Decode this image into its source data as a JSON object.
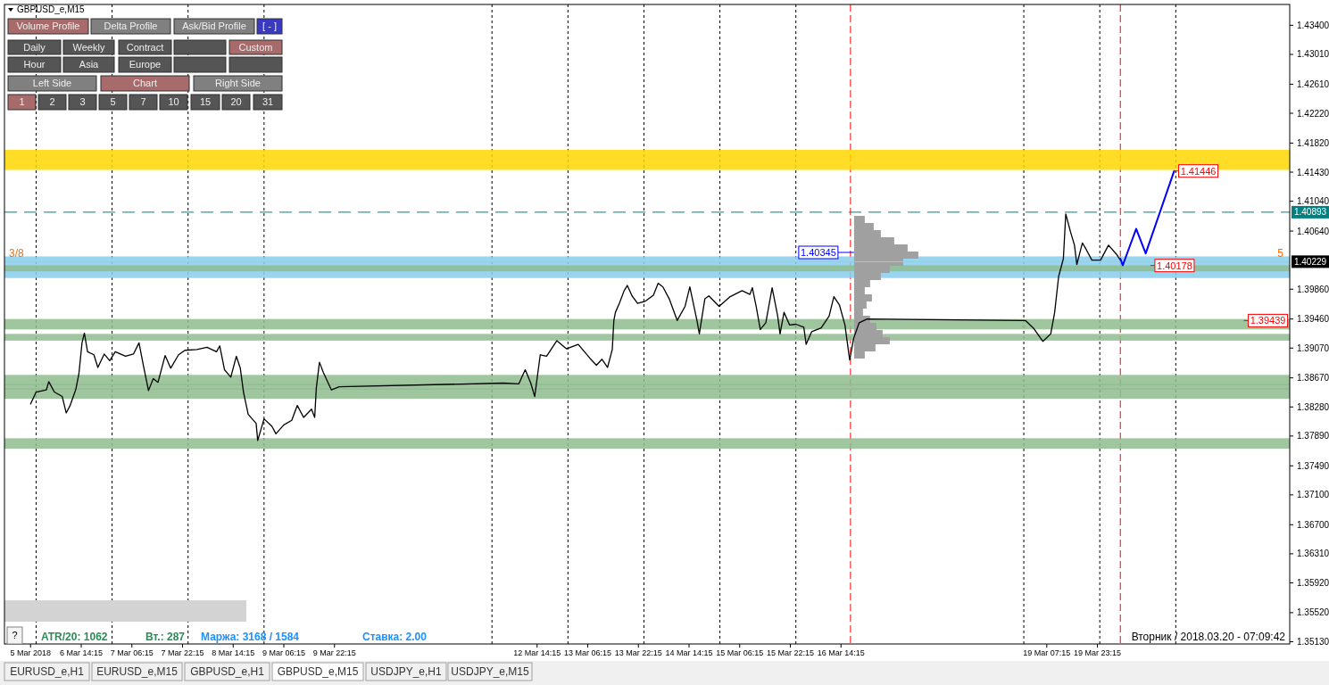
{
  "chart_data": {
    "type": "line",
    "title": "GBPUSD_e,M15",
    "xlim": [
      "2018-03-05T14:00",
      "2018-03-22T12:00"
    ],
    "ylim": [
      1.351,
      1.4368
    ],
    "xticks": [
      {
        "value": "2018-03-05T22:15",
        "label": "5 Mar 2018"
      },
      {
        "value": "2018-03-06T14:15",
        "label": "6 Mar 14:15"
      },
      {
        "value": "2018-03-07T06:15",
        "label": "7 Mar 06:15"
      },
      {
        "value": "2018-03-07T22:15",
        "label": "7 Mar 22:15"
      },
      {
        "value": "2018-03-08T14:15",
        "label": "8 Mar 14:15"
      },
      {
        "value": "2018-03-09T06:15",
        "label": "9 Mar 06:15"
      },
      {
        "value": "2018-03-09T22:15",
        "label": "9 Mar 22:15"
      },
      {
        "value": "2018-03-12T14:15",
        "label": "12 Mar 14:15"
      },
      {
        "value": "2018-03-13T06:15",
        "label": "13 Mar 06:15"
      },
      {
        "value": "2018-03-13T22:15",
        "label": "13 Mar 22:15"
      },
      {
        "value": "2018-03-14T14:15",
        "label": "14 Mar 14:15"
      },
      {
        "value": "2018-03-15T06:15",
        "label": "15 Mar 06:15"
      },
      {
        "value": "2018-03-15T22:15",
        "label": "15 Mar 22:15"
      },
      {
        "value": "2018-03-16T14:15",
        "label": "16 Mar 14:15"
      },
      {
        "value": "2018-03-19T07:15",
        "label": "19 Mar 07:15"
      },
      {
        "value": "2018-03-19T23:15",
        "label": "19 Mar 23:15"
      }
    ],
    "yticks": [
      {
        "value": 1.434,
        "label": "1.43400"
      },
      {
        "value": 1.4301,
        "label": "1.43010"
      },
      {
        "value": 1.4261,
        "label": "1.42610"
      },
      {
        "value": 1.4222,
        "label": "1.42220"
      },
      {
        "value": 1.4182,
        "label": "1.41820"
      },
      {
        "value": 1.4143,
        "label": "1.41430"
      },
      {
        "value": 1.4104,
        "label": "1.41040"
      },
      {
        "value": 1.4064,
        "label": "1.40640"
      },
      {
        "value": 1.3986,
        "label": "1.39860"
      },
      {
        "value": 1.3946,
        "label": "1.39460"
      },
      {
        "value": 1.3907,
        "label": "1.39070"
      },
      {
        "value": 1.3867,
        "label": "1.38670"
      },
      {
        "value": 1.3828,
        "label": "1.38280"
      },
      {
        "value": 1.3789,
        "label": "1.37890"
      },
      {
        "value": 1.3749,
        "label": "1.37490"
      },
      {
        "value": 1.371,
        "label": "1.37100"
      },
      {
        "value": 1.367,
        "label": "1.36700"
      },
      {
        "value": 1.3631,
        "label": "1.36310"
      },
      {
        "value": 1.3592,
        "label": "1.35920"
      },
      {
        "value": 1.3552,
        "label": "1.35520"
      },
      {
        "value": 1.3513,
        "label": "1.35130"
      }
    ],
    "series": [
      {
        "color": "#000000",
        "x": [
          "2018-03-05T22:15",
          "2018-03-06T00:00",
          "2018-03-06T03:15",
          "2018-03-06T04:00",
          "2018-03-06T05:45",
          "2018-03-06T08:15",
          "2018-03-06T09:30",
          "2018-03-06T10:45",
          "2018-03-06T12:30",
          "2018-03-06T13:30",
          "2018-03-06T14:30",
          "2018-03-06T15:15",
          "2018-03-06T16:15",
          "2018-03-06T18:15",
          "2018-03-06T19:30",
          "2018-03-06T21:30",
          "2018-03-06T23:15",
          "2018-03-07T01:00",
          "2018-03-07T04:15",
          "2018-03-07T06:45",
          "2018-03-07T08:30",
          "2018-03-07T10:00",
          "2018-03-07T11:30",
          "2018-03-07T13:00",
          "2018-03-07T14:30",
          "2018-03-07T16:45",
          "2018-03-07T18:30",
          "2018-03-07T21:00",
          "2018-03-07T23:00",
          "2018-03-08T02:45",
          "2018-03-08T06:00",
          "2018-03-08T09:00",
          "2018-03-08T10:00",
          "2018-03-08T11:30",
          "2018-03-08T13:30",
          "2018-03-08T15:15",
          "2018-03-08T16:30",
          "2018-03-08T17:30",
          "2018-03-08T19:00",
          "2018-03-08T21:30",
          "2018-03-08T22:00",
          "2018-03-09T00:00",
          "2018-03-09T02:30",
          "2018-03-09T03:45",
          "2018-03-09T06:15",
          "2018-03-09T08:45",
          "2018-03-09T10:30",
          "2018-03-09T12:30",
          "2018-03-09T15:00",
          "2018-03-09T16:00",
          "2018-03-09T16:30",
          "2018-03-09T17:30",
          "2018-03-09T18:45",
          "2018-03-09T21:15",
          "2018-03-09T23:45",
          "2018-03-12T03:30",
          "2018-03-12T08:30",
          "2018-03-12T10:30",
          "2018-03-12T12:15",
          "2018-03-12T13:30",
          "2018-03-12T15:15",
          "2018-03-12T17:15",
          "2018-03-12T20:30",
          "2018-03-12T23:30",
          "2018-03-13T03:15",
          "2018-03-13T07:00",
          "2018-03-13T09:00",
          "2018-03-13T10:45",
          "2018-03-13T12:30",
          "2018-03-13T14:00",
          "2018-03-13T14:30",
          "2018-03-13T15:00",
          "2018-03-13T16:15",
          "2018-03-13T17:45",
          "2018-03-13T18:45",
          "2018-03-13T20:15",
          "2018-03-13T22:00",
          "2018-03-14T00:30",
          "2018-03-14T03:00",
          "2018-03-14T04:30",
          "2018-03-14T06:00",
          "2018-03-14T08:00",
          "2018-03-14T10:30",
          "2018-03-14T13:00",
          "2018-03-14T14:30",
          "2018-03-14T16:45",
          "2018-03-14T17:30",
          "2018-03-14T19:15",
          "2018-03-14T20:30",
          "2018-03-14T23:45",
          "2018-03-15T03:15",
          "2018-03-15T07:00",
          "2018-03-15T09:30",
          "2018-03-15T10:15",
          "2018-03-15T11:30",
          "2018-03-15T12:45",
          "2018-03-15T14:30",
          "2018-03-15T16:30",
          "2018-03-15T18:15",
          "2018-03-15T19:00",
          "2018-03-15T20:15",
          "2018-03-15T22:00",
          "2018-03-16T00:00",
          "2018-03-16T02:30",
          "2018-03-16T03:15",
          "2018-03-16T05:00",
          "2018-03-16T08:00",
          "2018-03-16T10:30",
          "2018-03-16T12:00",
          "2018-03-16T13:45",
          "2018-03-16T15:30",
          "2018-03-16T17:00",
          "2018-03-16T18:15",
          "2018-03-16T20:00",
          "2018-03-16T22:30",
          "2018-03-19T00:30",
          "2018-03-19T03:00",
          "2018-03-19T06:00",
          "2018-03-19T08:30",
          "2018-03-19T09:45",
          "2018-03-19T11:00",
          "2018-03-19T11:45",
          "2018-03-19T12:30",
          "2018-03-19T13:15",
          "2018-03-19T14:45",
          "2018-03-19T16:00",
          "2018-03-19T16:45",
          "2018-03-19T18:30",
          "2018-03-19T19:45",
          "2018-03-19T21:30",
          "2018-03-20T00:15",
          "2018-03-20T02:45",
          "2018-03-20T05:15",
          "2018-03-20T06:30"
        ],
        "values": [
          1.3832,
          1.3848,
          1.3851,
          1.3862,
          1.3848,
          1.3842,
          1.382,
          1.383,
          1.3851,
          1.3872,
          1.3914,
          1.3927,
          1.3902,
          1.3898,
          1.3881,
          1.3899,
          1.389,
          1.3902,
          1.3896,
          1.3899,
          1.3914,
          1.3881,
          1.385,
          1.3866,
          1.3861,
          1.3897,
          1.388,
          1.3898,
          1.3904,
          1.3905,
          1.3908,
          1.3902,
          1.391,
          1.3878,
          1.3868,
          1.3896,
          1.388,
          1.3848,
          1.3818,
          1.3806,
          1.3783,
          1.3812,
          1.3802,
          1.3792,
          1.3804,
          1.381,
          1.383,
          1.3814,
          1.3825,
          1.3814,
          1.3853,
          1.3888,
          1.3874,
          1.3851,
          1.3855,
          1.386,
          1.3859,
          1.3878,
          1.386,
          1.3842,
          1.3898,
          1.3896,
          1.3917,
          1.3906,
          1.3912,
          1.3893,
          1.3884,
          1.3892,
          1.3881,
          1.3905,
          1.3944,
          1.3955,
          1.3967,
          1.3984,
          1.3991,
          1.3977,
          1.3967,
          1.397,
          1.3978,
          1.3994,
          1.3989,
          1.3973,
          1.3944,
          1.3963,
          1.3989,
          1.3944,
          1.3926,
          1.3973,
          1.3977,
          1.3963,
          1.3976,
          1.3984,
          1.3979,
          1.3988,
          1.3962,
          1.3932,
          1.3941,
          1.3988,
          1.395,
          1.3926,
          1.3955,
          1.3938,
          1.3939,
          1.3935,
          1.3912,
          1.3929,
          1.3934,
          1.395,
          1.3976,
          1.3965,
          1.3938,
          1.3891,
          1.392,
          1.3941,
          1.3946,
          1.3944,
          1.3934,
          1.3916,
          1.3926,
          1.3955,
          1.4003,
          1.4015,
          1.4027,
          1.4087,
          1.4063,
          1.4045,
          1.4019,
          1.4048,
          1.4039,
          1.4025,
          1.4025,
          1.4045,
          1.4033,
          1.4025
        ]
      },
      {
        "color": "#0000ff",
        "x": [
          "2018-03-20T06:30",
          "2018-03-20T07:15",
          "2018-03-20T11:30",
          "2018-03-20T14:30",
          "2018-03-20T23:30"
        ],
        "values": [
          1.4027,
          1.4018,
          1.4067,
          1.4034,
          1.41446
        ]
      }
    ],
    "bands": [
      {
        "axis": "y",
        "from": 1.4146,
        "to": 1.4173,
        "color": "#ffd700"
      },
      {
        "axis": "y",
        "from": 1.4001,
        "to": 1.403,
        "color": "#87ceeb"
      },
      {
        "axis": "y",
        "from": 1.3857,
        "to": 1.3871,
        "color": "#8fbc8f"
      },
      {
        "axis": "y",
        "from": 1.3851,
        "to": 1.3859,
        "color": "#8fbc8f"
      },
      {
        "axis": "y",
        "from": 1.3772,
        "to": 1.3786,
        "color": "#8fbc8f"
      },
      {
        "axis": "y",
        "from": 1.3917,
        "to": 1.3926,
        "color": "#8fbc8f"
      },
      {
        "axis": "y",
        "from": 1.3839,
        "to": 1.3853,
        "color": "#8fbc8f"
      },
      {
        "axis": "y",
        "from": 1.401,
        "to": 1.4018,
        "color": "#8fbc8f"
      },
      {
        "axis": "y",
        "from": 1.3932,
        "to": 1.3946,
        "color": "#8fbc8f"
      }
    ],
    "ref_lines": [
      {
        "axis": "y",
        "value": 1.40893,
        "label": "1.40893",
        "color": "#008080",
        "line_style": "dashed"
      },
      {
        "axis": "y",
        "value": 1.40229,
        "label": "1.40229",
        "color": "#c0c0c0",
        "line_style": "solid"
      },
      {
        "axis": "x",
        "value": "2018-03-06",
        "color": "#000000",
        "line_style": "dashed"
      },
      {
        "axis": "x",
        "value": "2018-03-07",
        "color": "#000000",
        "line_style": "dashed"
      },
      {
        "axis": "x",
        "value": "2018-03-08",
        "color": "#000000",
        "line_style": "dashed"
      },
      {
        "axis": "x",
        "value": "2018-03-09",
        "color": "#000000",
        "line_style": "dashed"
      },
      {
        "axis": "x",
        "value": "2018-03-12",
        "color": "#000000",
        "line_style": "dashed"
      },
      {
        "axis": "x",
        "value": "2018-03-13",
        "color": "#000000",
        "line_style": "dashed"
      },
      {
        "axis": "x",
        "value": "2018-03-14",
        "color": "#000000",
        "line_style": "dashed"
      },
      {
        "axis": "x",
        "value": "2018-03-15",
        "color": "#000000",
        "line_style": "dashed"
      },
      {
        "axis": "x",
        "value": "2018-03-16",
        "color": "#000000",
        "line_style": "dashed"
      },
      {
        "axis": "x",
        "value": "2018-03-19",
        "color": "#000000",
        "line_style": "dashed"
      },
      {
        "axis": "x",
        "value": "2018-03-20",
        "color": "#000000",
        "line_style": "dashed"
      },
      {
        "axis": "x",
        "value": "2018-03-21",
        "color": "#000000",
        "line_style": "dashed"
      },
      {
        "axis": "x",
        "value": "2018-03-16T17:15",
        "color": "#ff0000",
        "line_style": "dashed"
      },
      {
        "axis": "x",
        "value": "2018-03-20T06:30",
        "color": "#ff0000",
        "line_style": "dashed"
      }
    ],
    "annotations": [
      "Volume Profile",
      "Delta Profile",
      "Ask/Bid Profile",
      "[ - ]",
      "Daily",
      "Weekly",
      "Contract",
      "Custom",
      "Hour",
      "Asia",
      "Europe",
      "Left Side",
      "Chart",
      "Right Side",
      "1",
      "2",
      "3",
      "5",
      "7",
      "10",
      "15",
      "20",
      "31",
      "?",
      "ATR/20: 1062",
      "Вт.: 287",
      "Маржа: 3168 / 1584",
      "Ставка: 2.00",
      "Вторник / 2018.03.20 - 07:09:42",
      "EURUSD_e,H1",
      "EURUSD_e,M15",
      "GBPUSD_e,H1",
      "GBPUSD_e,M15",
      "USDJPY_e,H1",
      "USDJPY_e,M15",
      {
        "text": "1.41446",
        "x": "2018-03-20T23:30",
        "y": 1.41446
      },
      {
        "text": "1.40178",
        "x": "2018-03-20T16:00",
        "y": 1.40178
      },
      {
        "text": "1.39439",
        "x": "2018-03-21T21:30",
        "y": 1.39439
      },
      "1.40345",
      "3/8",
      "5"
    ]
  }
}
